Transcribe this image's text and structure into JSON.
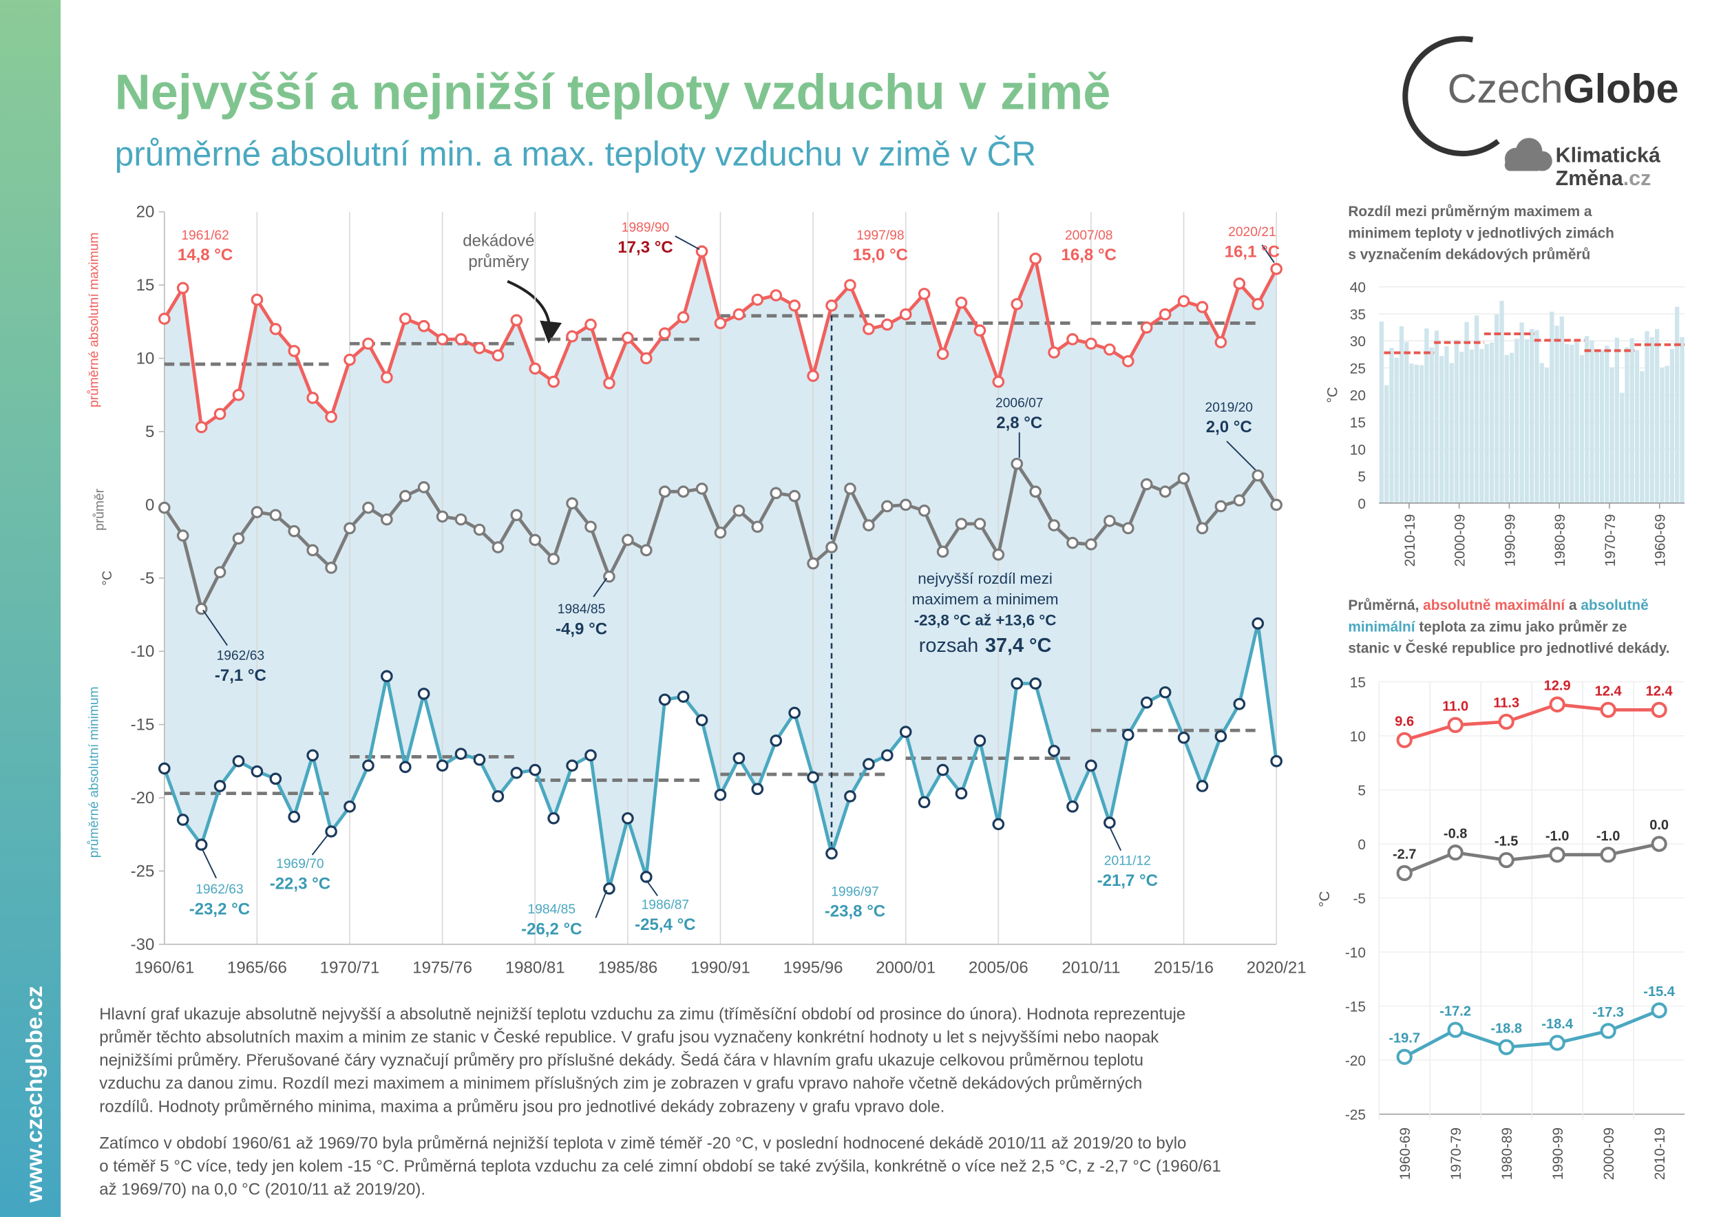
{
  "header": {
    "title": "Nejvyšší a nejnižší teploty vzduchu v zimě",
    "subtitle": "průměrné absolutní min. a max. teploty vzduchu v zimě v ČR"
  },
  "logo": {
    "part1": "Czech",
    "part2": "Globe",
    "line1": "Klimatická",
    "line2": "Změna",
    "line2_suffix": ".cz"
  },
  "sidebar_url": "www.czechglobe.cz",
  "description": [
    [
      "Hlavní graf ukazuje absolutně nejvyšší a absolutně nejnižší teplotu vzduchu za zimu (tříměsíční období od prosince do února). Hodnota reprezentuje",
      "průměr těchto absolutních maxim a minim ze stanic v České republice. V grafu jsou vyznačeny konkrétní hodnoty u let s nejvyššími nebo naopak",
      "nejnižšími průměry. Přerušované čáry vyznačují průměry pro příslušné dekády. Šedá čára v hlavním grafu ukazuje celkovou průměrnou teplotu",
      "vzduchu za danou zimu. Rozdíl mezi maximem a minimem příslušných zim je zobrazen v grafu vpravo nahoře včetně dekádových průměrných",
      "rozdílů. Hodnoty průměrného minima, maxima a průměru jsou pro jednotlivé dekády zobrazeny v grafu vpravo dole."
    ],
    [
      "Zatímco v období 1960/61 až 1969/70 byla průměrná nejnižší teplota v zimě téměř -20 °C, v poslední hodnocené dekádě 2010/11 až 2019/20 to bylo",
      "o téměř 5 °C více, tedy jen kolem -15 °C. Průměrná teplota vzduchu za celé zimní období se také zvýšila, konkrétně o více než 2,5 °C, z -2,7 °C (1960/61",
      "až 1969/70) na 0,0 °C (2010/11 až 2019/20)."
    ]
  ],
  "chart_data": [
    {
      "type": "line",
      "categories": [
        "1960/61",
        null,
        null,
        null,
        null,
        "1965/66",
        null,
        null,
        null,
        null,
        "1970/71",
        null,
        null,
        null,
        null,
        "1975/76",
        null,
        null,
        null,
        null,
        "1980/81",
        null,
        null,
        null,
        null,
        "1985/86",
        null,
        null,
        null,
        null,
        "1990/91",
        null,
        null,
        null,
        null,
        "1995/96",
        null,
        null,
        null,
        null,
        "2000/01",
        null,
        null,
        null,
        null,
        "2005/06",
        null,
        null,
        null,
        null,
        "2010/11",
        null,
        null,
        null,
        null,
        "2015/16",
        null,
        null,
        null,
        null,
        "2020/21"
      ],
      "ylim": [
        -30,
        20
      ],
      "yticks": [
        -30,
        -25,
        -20,
        -15,
        -10,
        -5,
        0,
        5,
        10,
        15,
        20
      ],
      "y_label": "°C",
      "fill_color": "#d9eaf2",
      "grid": true,
      "series": [
        {
          "name": "průměrné absolutní maximum",
          "color": "#f0605d",
          "marker_color": "#f0605d",
          "values": [
            12.7,
            14.8,
            5.3,
            6.2,
            7.5,
            14.0,
            12.0,
            10.5,
            7.3,
            6.0,
            9.9,
            11.0,
            8.7,
            12.7,
            12.2,
            11.3,
            11.3,
            10.7,
            10.2,
            12.6,
            9.3,
            8.4,
            11.5,
            12.3,
            8.3,
            11.4,
            10.0,
            11.7,
            12.8,
            17.3,
            12.4,
            13.0,
            14.0,
            14.3,
            13.6,
            8.8,
            13.6,
            15.0,
            12.0,
            12.3,
            13.0,
            14.4,
            10.3,
            13.8,
            11.9,
            8.4,
            13.7,
            16.8,
            10.4,
            11.3,
            11.0,
            10.6,
            9.8,
            12.1,
            13.0,
            13.9,
            13.5,
            11.1,
            15.1,
            13.7,
            16.1
          ],
          "annotations": [
            {
              "x": "1961/62",
              "label": "14,8 °C"
            },
            {
              "x": "1989/90",
              "label": "17,3 °C"
            },
            {
              "x": "1997/98",
              "label": "15,0 °C"
            },
            {
              "x": "2007/08",
              "label": "16,8 °C"
            },
            {
              "x": "2020/21",
              "label": "16,1 °C"
            }
          ]
        },
        {
          "name": "průměr",
          "color": "#7b7b7b",
          "marker_color": "#7b7b7b",
          "values": [
            -0.2,
            -2.1,
            -7.1,
            -4.6,
            -2.3,
            -0.5,
            -0.7,
            -1.8,
            -3.1,
            -4.3,
            -1.6,
            -0.2,
            -1.0,
            0.6,
            1.2,
            -0.8,
            -1.0,
            -1.7,
            -2.9,
            -0.7,
            -2.4,
            -3.7,
            0.1,
            -1.5,
            -4.9,
            -2.4,
            -3.1,
            0.9,
            0.9,
            1.1,
            -1.9,
            -0.4,
            -1.5,
            0.8,
            0.6,
            -4.0,
            -2.9,
            1.1,
            -1.4,
            -0.1,
            0.0,
            -0.4,
            -3.2,
            -1.3,
            -1.3,
            -3.4,
            2.8,
            0.9,
            -1.4,
            -2.6,
            -2.7,
            -1.1,
            -1.6,
            1.4,
            0.9,
            1.8,
            -1.6,
            -0.1,
            0.3,
            2.0,
            0.0
          ],
          "annotations": [
            {
              "x": "1962/63",
              "label": "-7,1 °C"
            },
            {
              "x": "1984/85",
              "label": "-4,9 °C"
            },
            {
              "x": "2006/07",
              "label": "2,8 °C"
            },
            {
              "x": "2019/20",
              "label": "2,0 °C"
            }
          ]
        },
        {
          "name": "průměrné absolutní minimum",
          "color": "#4aa8c0",
          "marker_color": "#1b3a5c",
          "values": [
            -18.0,
            -21.5,
            -23.2,
            -19.2,
            -17.5,
            -18.2,
            -18.7,
            -21.3,
            -17.1,
            -22.3,
            -20.6,
            -17.8,
            -11.7,
            -17.9,
            -12.9,
            -17.8,
            -17.0,
            -17.4,
            -19.9,
            -18.3,
            -18.1,
            -21.4,
            -17.8,
            -17.1,
            -26.2,
            -21.4,
            -25.4,
            -13.3,
            -13.1,
            -14.7,
            -19.8,
            -17.3,
            -19.4,
            -16.1,
            -14.2,
            -18.6,
            -23.8,
            -19.9,
            -17.7,
            -17.1,
            -15.5,
            -20.3,
            -18.1,
            -19.7,
            -16.1,
            -21.8,
            -12.2,
            -12.2,
            -16.8,
            -20.6,
            -17.8,
            -21.7,
            -15.7,
            -13.5,
            -12.8,
            -15.9,
            -19.2,
            -15.8,
            -13.6,
            -8.1,
            -17.5
          ],
          "annotations": [
            {
              "x": "1962/63",
              "label": "-23,2 °C"
            },
            {
              "x": "1969/70",
              "label": "-22,3 °C"
            },
            {
              "x": "1984/85",
              "label": "-26,2 °C"
            },
            {
              "x": "1986/87",
              "label": "-25,4 °C"
            },
            {
              "x": "1996/97",
              "label": "-23,8 °C"
            },
            {
              "x": "2011/12",
              "label": "-21,7 °C"
            }
          ]
        }
      ],
      "decade_note": [
        "dekádové",
        "průměry"
      ],
      "range_note": {
        "x": "1996/97",
        "lines": [
          "nejvyšší rozdíl mezi",
          "maximem a minimem",
          "-23,8 °C až +13,6 °C"
        ],
        "range_word": "rozsah",
        "range_value": "37,4 °C"
      }
    },
    {
      "type": "bar",
      "title_lines": [
        "Rozdíl mezi průměrným maximem a",
        "minimem teploty v jednotlivých zimách",
        "s vyznačením dekádových průměrů"
      ],
      "y_label": "°C",
      "color": "#cfe5ec",
      "decade_color": "#e8584f",
      "x_reversed": true,
      "values": [
        30.7,
        36.3,
        28.5,
        25.4,
        25.0,
        32.2,
        30.7,
        31.8,
        24.4,
        28.3,
        30.5,
        28.8,
        20.4,
        30.6,
        25.1,
        29.1,
        28.3,
        28.1,
        30.1,
        30.9,
        27.4,
        29.8,
        29.3,
        29.4,
        34.5,
        32.8,
        35.4,
        25.0,
        25.9,
        32.0,
        32.2,
        30.3,
        33.4,
        30.4,
        27.8,
        27.4,
        37.4,
        34.9,
        29.7,
        29.4,
        28.5,
        34.7,
        28.4,
        33.5,
        28.0,
        30.2,
        25.9,
        29.0,
        27.2,
        31.9,
        28.8,
        32.3,
        25.5,
        25.6,
        25.8,
        29.8,
        32.7,
        26.9,
        28.7,
        21.8,
        33.6
      ],
      "decades": [
        "1960-69",
        "1970-79",
        "1980-89",
        "1990-99",
        "2000-09",
        "2010-19"
      ],
      "decade_means": [
        29.3,
        28.2,
        30.1,
        31.3,
        29.7,
        27.8
      ],
      "ylim": [
        0,
        40
      ],
      "yticks": [
        0,
        5,
        10,
        15,
        20,
        25,
        30,
        35,
        40
      ]
    },
    {
      "type": "line",
      "title_lines": [
        [
          {
            "text": "Průměrná, ",
            "color": "#666666"
          },
          {
            "text": "absolutně maximální",
            "color": "#f0605d"
          },
          {
            "text": " a ",
            "color": "#666666"
          },
          {
            "text": "absolutně",
            "color": "#4aa8c0"
          }
        ],
        [
          {
            "text": "minimální",
            "color": "#4aa8c0"
          },
          {
            "text": " teplota za zimu jako průměr ze",
            "color": "#666666"
          }
        ],
        [
          {
            "text": "stanic v České republice pro jednotlivé dekády.",
            "color": "#666666"
          }
        ]
      ],
      "y_label": "°C",
      "categories": [
        "1960-69",
        "1970-79",
        "1980-89",
        "1990-99",
        "2000-09",
        "2010-19"
      ],
      "ylim": [
        -25,
        15
      ],
      "yticks": [
        -25,
        -20,
        -15,
        -10,
        -5,
        0,
        5,
        10,
        15
      ],
      "series": [
        {
          "color": "#f0605d",
          "label_color": "#d0202a",
          "values": [
            9.6,
            11.0,
            11.3,
            12.9,
            12.4,
            12.4
          ],
          "value_labels": [
            "9.6",
            "11.0",
            "11.3",
            "12.9",
            "12.4",
            "12.4"
          ]
        },
        {
          "color": "#7b7b7b",
          "label_color": "#333333",
          "values": [
            -2.7,
            -0.8,
            -1.5,
            -1.0,
            -1.0,
            0.0
          ],
          "value_labels": [
            "-2.7",
            "-0.8",
            "-1.5",
            "-1.0",
            "-1.0",
            "0.0"
          ]
        },
        {
          "color": "#4aa8c0",
          "label_color": "#3a9ab3",
          "values": [
            -19.7,
            -17.2,
            -18.8,
            -18.4,
            -17.3,
            -15.4
          ],
          "value_labels": [
            "-19.7",
            "-17.2",
            "-18.8",
            "-18.4",
            "-17.3",
            "-15.4"
          ]
        }
      ]
    }
  ]
}
